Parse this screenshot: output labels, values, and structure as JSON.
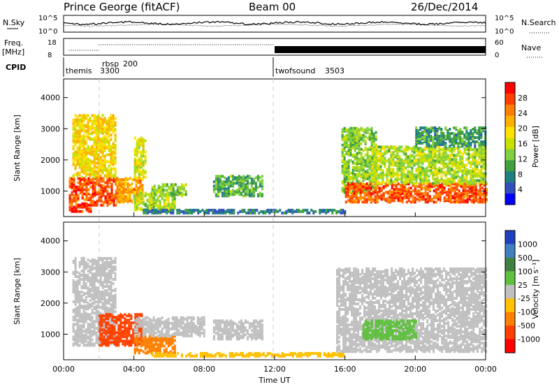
{
  "header": {
    "station": "Prince George (fitACF)",
    "beam": "Beam 00",
    "date": "26/Dec/2014"
  },
  "sky_panel": {
    "left_label": "N.Sky",
    "right_label": "N.Search",
    "left_ticks": [
      "10^5",
      "10^0"
    ],
    "right_ticks": [
      "10^5",
      "10^0"
    ]
  },
  "freq_panel": {
    "left_label_1": "Freq.",
    "left_label_2": "[MHz]",
    "right_label": "Nave",
    "left_ticks": [
      "18",
      "8"
    ],
    "right_ticks": [
      "60",
      "0"
    ]
  },
  "cpid_panel": {
    "label": "CPID",
    "segments": [
      {
        "name": "themis",
        "id": "3300",
        "start": 0,
        "end": 2
      },
      {
        "name": "rbsp",
        "id": "200",
        "start": 2,
        "end": 12
      },
      {
        "name": "twofsound",
        "id": "3503",
        "start": 12,
        "end": 24
      }
    ]
  },
  "power_panel": {
    "ylabel": "Slant Range [km]",
    "yticks": [
      "1000",
      "2000",
      "3000",
      "4000"
    ],
    "colorbar_label": "Power [dB]",
    "colorbar_ticks": [
      "28",
      "24",
      "20",
      "16",
      "12",
      "8",
      "4"
    ],
    "colors": [
      "#ff0000",
      "#ff4000",
      "#ff8000",
      "#ffb000",
      "#ffe000",
      "#c8e000",
      "#80d040",
      "#40a040",
      "#208080",
      "#3050c0",
      "#0000ff"
    ]
  },
  "velocity_panel": {
    "ylabel": "Slant Range [km]",
    "yticks": [
      "1000",
      "2000",
      "3000",
      "4000"
    ],
    "colorbar_label": "Velocity [m s⁻¹]",
    "colorbar_ticks": [
      "1000",
      "500",
      "100",
      "25",
      "-25",
      "-100",
      "-500",
      "-1000"
    ],
    "colors": [
      "#2040c0",
      "#4080c0",
      "#408040",
      "#60c040",
      "#c0c0c0",
      "#ffc000",
      "#ff8000",
      "#ff4000",
      "#ff0000"
    ]
  },
  "time_axis": {
    "label": "Time UT",
    "ticks": [
      "00:00",
      "04:00",
      "08:00",
      "12:00",
      "16:00",
      "20:00",
      "00:00"
    ]
  },
  "chart_data": {
    "type": "heatmap",
    "title": "Prince George (fitACF)",
    "x_unit": "hours UT",
    "xlim": [
      0,
      24
    ],
    "ylim_km": [
      180,
      4600
    ],
    "power_range_dB": [
      0,
      30
    ],
    "velocity_range_ms": [
      -1000,
      1000
    ],
    "power_regions": [
      {
        "t0": 0.3,
        "t1": 1.5,
        "r0": 300,
        "r1": 500,
        "level": 28
      },
      {
        "t0": 0.3,
        "t1": 3.0,
        "r0": 500,
        "r1": 1400,
        "level": 26
      },
      {
        "t0": 0.5,
        "t1": 3.0,
        "r0": 1400,
        "r1": 3400,
        "level": 18
      },
      {
        "t0": 3.0,
        "t1": 4.5,
        "r0": 600,
        "r1": 1400,
        "level": 22
      },
      {
        "t0": 4.0,
        "t1": 4.6,
        "r0": 1400,
        "r1": 2700,
        "level": 16
      },
      {
        "t0": 4.0,
        "t1": 6.3,
        "r0": 350,
        "r1": 900,
        "level": 14
      },
      {
        "t0": 5.0,
        "t1": 7.0,
        "r0": 800,
        "r1": 1200,
        "level": 12
      },
      {
        "t0": 8.5,
        "t1": 11.3,
        "r0": 800,
        "r1": 1450,
        "level": 10
      },
      {
        "t0": 4.5,
        "t1": 16.0,
        "r0": 250,
        "r1": 350,
        "level": 6
      },
      {
        "t0": 15.8,
        "t1": 17.8,
        "r0": 900,
        "r1": 3000,
        "level": 12
      },
      {
        "t0": 16.0,
        "t1": 24.0,
        "r0": 600,
        "r1": 1200,
        "level": 26
      },
      {
        "t0": 17.5,
        "t1": 24.0,
        "r0": 1200,
        "r1": 2400,
        "level": 14
      },
      {
        "t0": 20.0,
        "t1": 24.0,
        "r0": 2400,
        "r1": 3000,
        "level": 8
      }
    ],
    "velocity_regions": [
      {
        "t0": 0.5,
        "t1": 3.0,
        "r0": 600,
        "r1": 3400,
        "level": 0
      },
      {
        "t0": 2.0,
        "t1": 4.5,
        "r0": 600,
        "r1": 1600,
        "level": -600
      },
      {
        "t0": 4.0,
        "t1": 6.3,
        "r0": 350,
        "r1": 900,
        "level": -150
      },
      {
        "t0": 4.0,
        "t1": 8.0,
        "r0": 900,
        "r1": 1500,
        "level": 0
      },
      {
        "t0": 8.5,
        "t1": 11.3,
        "r0": 800,
        "r1": 1400,
        "level": 0
      },
      {
        "t0": 5.0,
        "t1": 16.0,
        "r0": 250,
        "r1": 350,
        "level": -60
      },
      {
        "t0": 15.5,
        "t1": 24.0,
        "r0": 400,
        "r1": 3100,
        "level": 0
      },
      {
        "t0": 17.0,
        "t1": 20.0,
        "r0": 800,
        "r1": 1400,
        "level": 80
      }
    ]
  }
}
